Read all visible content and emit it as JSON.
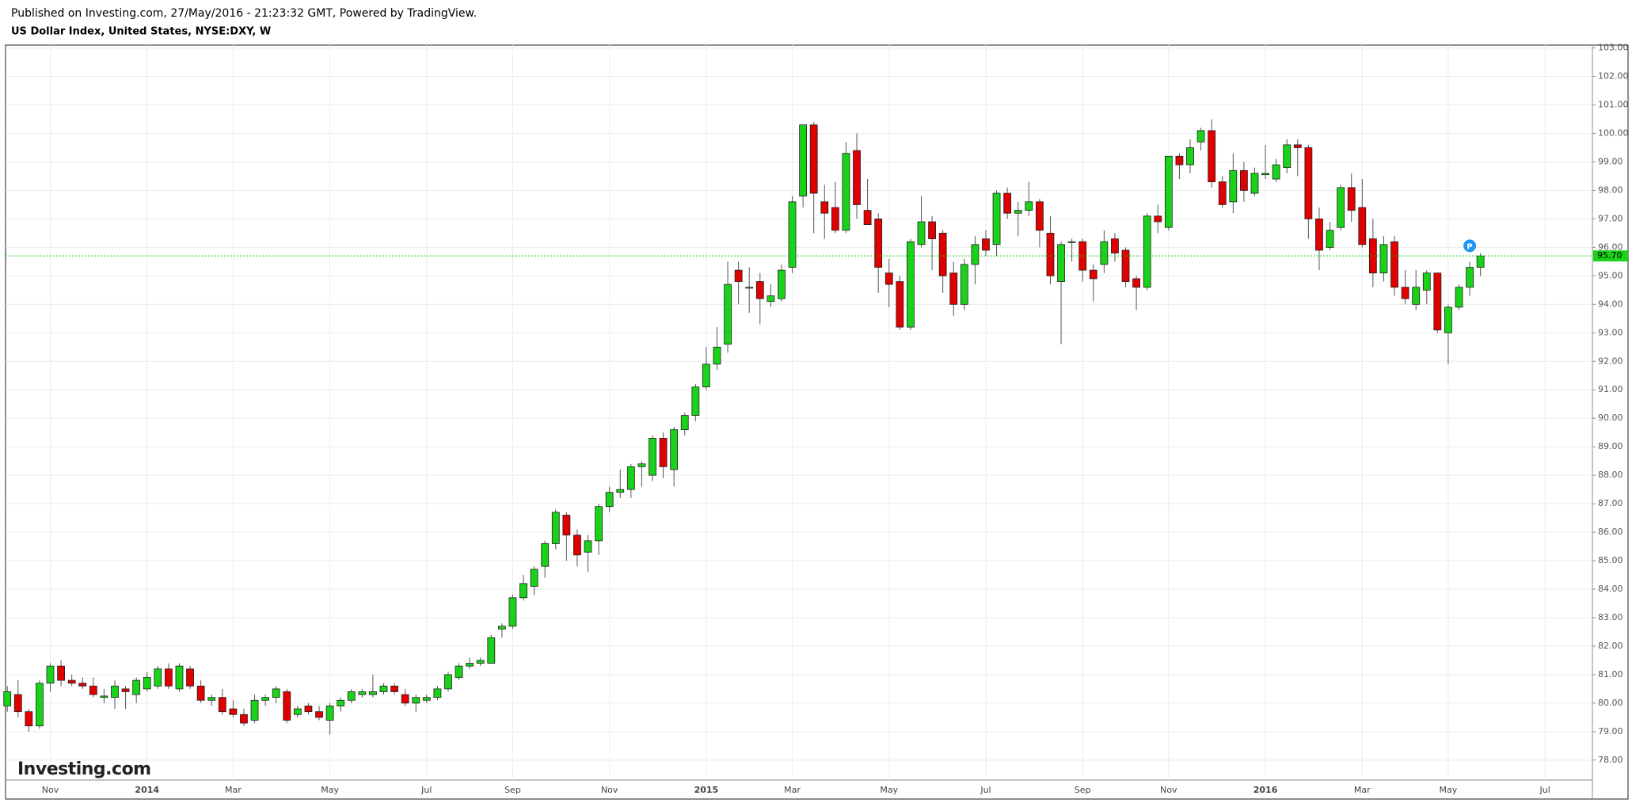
{
  "chart_data": {
    "type": "candlestick",
    "subtitle": "Published on Investing.com, 27/May/2016 - 21:23:32 GMT, Powered by TradingView.",
    "title": "US Dollar Index, United States, NYSE:DXY, W",
    "watermark": "Investing.com",
    "marker_label": "P",
    "up_color": "#19d219",
    "down_color": "#e00000",
    "grid": true,
    "price_line": {
      "value": 95.7,
      "label": "95.70"
    },
    "ylim": [
      77.3,
      103.1
    ],
    "yticks": [
      {
        "value": 78,
        "label": "78.00"
      },
      {
        "value": 79,
        "label": "79.00"
      },
      {
        "value": 80,
        "label": "80.00"
      },
      {
        "value": 81,
        "label": "81.00"
      },
      {
        "value": 82,
        "label": "82.00"
      },
      {
        "value": 83,
        "label": "83.00"
      },
      {
        "value": 84,
        "label": "84.00"
      },
      {
        "value": 85,
        "label": "85.00"
      },
      {
        "value": 86,
        "label": "86.00"
      },
      {
        "value": 87,
        "label": "87.00"
      },
      {
        "value": 88,
        "label": "88.00"
      },
      {
        "value": 89,
        "label": "89.00"
      },
      {
        "value": 90,
        "label": "90.00"
      },
      {
        "value": 91,
        "label": "91.00"
      },
      {
        "value": 92,
        "label": "92.00"
      },
      {
        "value": 93,
        "label": "93.00"
      },
      {
        "value": 94,
        "label": "94.00"
      },
      {
        "value": 95,
        "label": "95.00"
      },
      {
        "value": 96,
        "label": "96.00"
      },
      {
        "value": 97,
        "label": "97.00"
      },
      {
        "value": 98,
        "label": "98.00"
      },
      {
        "value": 99,
        "label": "99.00"
      },
      {
        "value": 100,
        "label": "100.00"
      },
      {
        "value": 101,
        "label": "101.00"
      },
      {
        "value": 102,
        "label": "102.00"
      },
      {
        "value": 103,
        "label": "103.00"
      }
    ],
    "categories": [
      null,
      null,
      null,
      null,
      "Nov",
      null,
      null,
      null,
      null,
      null,
      null,
      null,
      null,
      "2014",
      null,
      null,
      null,
      null,
      null,
      null,
      null,
      "Mar",
      null,
      null,
      null,
      null,
      null,
      null,
      null,
      null,
      "May",
      null,
      null,
      null,
      null,
      null,
      null,
      null,
      null,
      "Jul",
      null,
      null,
      null,
      null,
      null,
      null,
      null,
      "Sep",
      null,
      null,
      null,
      null,
      null,
      null,
      null,
      null,
      "Nov",
      null,
      null,
      null,
      null,
      null,
      null,
      null,
      null,
      "2015",
      null,
      null,
      null,
      null,
      null,
      null,
      null,
      "Mar",
      null,
      null,
      null,
      null,
      null,
      null,
      null,
      null,
      "May",
      null,
      null,
      null,
      null,
      null,
      null,
      null,
      null,
      "Jul",
      null,
      null,
      null,
      null,
      null,
      null,
      null,
      null,
      "Sep",
      null,
      null,
      null,
      null,
      null,
      null,
      null,
      "Nov",
      null,
      null,
      null,
      null,
      null,
      null,
      null,
      null,
      "2016",
      null,
      null,
      null,
      null,
      null,
      null,
      null,
      null,
      "Mar",
      null,
      null,
      null,
      null,
      null,
      null,
      null,
      "May",
      null,
      null,
      null,
      null,
      null,
      null,
      null,
      null,
      "Jul"
    ],
    "open": [
      79.9,
      80.3,
      79.7,
      79.2,
      80.7,
      81.3,
      80.8,
      80.7,
      80.6,
      80.2,
      80.2,
      80.5,
      80.3,
      80.5,
      80.6,
      81.2,
      80.5,
      81.2,
      80.6,
      80.1,
      80.2,
      79.8,
      79.6,
      79.4,
      80.1,
      80.2,
      80.4,
      79.6,
      79.9,
      79.7,
      79.4,
      79.9,
      80.1,
      80.3,
      80.3,
      80.4,
      80.6,
      80.3,
      80.0,
      80.1,
      80.2,
      80.5,
      80.9,
      81.3,
      81.4,
      81.4,
      82.6,
      82.7,
      83.7,
      84.1,
      84.8,
      85.6,
      86.6,
      85.9,
      85.3,
      85.7,
      86.9,
      87.4,
      87.5,
      88.3,
      88.0,
      89.3,
      88.2,
      89.6,
      90.1,
      91.1,
      91.9,
      92.6,
      95.2,
      94.6,
      94.8,
      94.1,
      94.2,
      95.3,
      97.8,
      100.3,
      97.6,
      97.4,
      96.6,
      99.4,
      97.3,
      97.0,
      95.1,
      94.8,
      93.2,
      96.1,
      96.9,
      96.5,
      95.1,
      94.0,
      95.4,
      96.3,
      96.1,
      97.9,
      97.2,
      97.3,
      97.6,
      96.5,
      94.8,
      96.2,
      96.2,
      95.2,
      95.4,
      96.3,
      95.9,
      94.9,
      94.6,
      97.1,
      96.7,
      99.2,
      98.9,
      99.7,
      100.1,
      98.3,
      97.6,
      98.7,
      97.9,
      98.55,
      98.4,
      98.8,
      99.6,
      99.5,
      97.0,
      96.0,
      96.7,
      98.1,
      97.4,
      96.3,
      95.1,
      96.2,
      94.6,
      94.0,
      94.5,
      95.1,
      93.0,
      93.9,
      94.6,
      95.3,
      null,
      null,
      null,
      null,
      null,
      null
    ],
    "high": [
      80.6,
      80.8,
      79.8,
      80.8,
      81.4,
      81.5,
      81.0,
      80.9,
      80.9,
      80.5,
      80.8,
      80.6,
      80.9,
      81.1,
      81.3,
      81.4,
      81.4,
      81.3,
      80.8,
      80.3,
      80.5,
      80.1,
      79.8,
      80.3,
      80.3,
      80.6,
      80.5,
      79.9,
      80.0,
      79.9,
      80.0,
      80.2,
      80.5,
      80.5,
      81.0,
      80.7,
      80.7,
      80.5,
      80.3,
      80.3,
      80.6,
      81.1,
      81.4,
      81.6,
      81.6,
      82.4,
      82.8,
      83.8,
      84.5,
      84.8,
      85.7,
      86.8,
      86.7,
      86.1,
      85.9,
      87.0,
      87.6,
      88.2,
      88.4,
      88.5,
      89.4,
      89.5,
      89.7,
      90.2,
      91.2,
      92.5,
      93.2,
      95.5,
      95.5,
      95.3,
      95.1,
      94.7,
      95.4,
      97.8,
      100.3,
      100.4,
      98.2,
      98.3,
      99.7,
      100.0,
      98.4,
      97.2,
      95.6,
      95.0,
      96.3,
      97.8,
      97.1,
      96.6,
      95.5,
      95.6,
      96.4,
      96.6,
      98.0,
      98.1,
      97.6,
      98.3,
      97.7,
      97.1,
      96.2,
      96.3,
      96.3,
      95.4,
      96.6,
      96.5,
      96.0,
      95.0,
      97.2,
      97.5,
      99.2,
      99.3,
      99.8,
      100.2,
      100.5,
      98.5,
      99.3,
      99.0,
      98.8,
      99.6,
      99.1,
      99.8,
      99.8,
      99.6,
      97.4,
      96.9,
      98.2,
      98.6,
      98.4,
      97.0,
      96.4,
      96.4,
      95.2,
      95.2,
      95.2,
      95.1,
      94.0,
      94.7,
      95.5,
      95.8,
      null,
      null,
      null,
      null,
      null,
      null
    ],
    "low": [
      79.7,
      79.5,
      79.0,
      79.1,
      80.4,
      80.6,
      80.6,
      80.5,
      80.2,
      80.0,
      79.8,
      79.8,
      80.0,
      80.4,
      80.5,
      80.5,
      80.4,
      80.5,
      80.0,
      79.9,
      79.6,
      79.5,
      79.2,
      79.3,
      79.9,
      80.0,
      79.3,
      79.5,
      79.6,
      79.4,
      78.9,
      79.7,
      80.0,
      80.2,
      80.2,
      80.3,
      80.3,
      79.9,
      79.7,
      80.0,
      80.1,
      80.4,
      80.8,
      81.2,
      81.3,
      81.4,
      82.3,
      82.6,
      83.6,
      83.8,
      84.4,
      85.4,
      85.0,
      84.8,
      84.6,
      85.2,
      86.7,
      87.2,
      87.2,
      87.6,
      87.8,
      87.9,
      87.6,
      89.4,
      89.9,
      91.0,
      91.7,
      92.3,
      94.0,
      93.7,
      93.3,
      93.9,
      94.1,
      95.1,
      97.4,
      96.5,
      96.3,
      96.5,
      96.5,
      97.0,
      96.8,
      94.4,
      93.9,
      93.1,
      93.1,
      96.0,
      95.2,
      94.4,
      93.6,
      93.8,
      94.7,
      95.7,
      95.7,
      97.0,
      96.4,
      97.1,
      96.0,
      94.7,
      92.6,
      95.5,
      94.8,
      94.1,
      95.1,
      95.5,
      94.6,
      93.8,
      94.5,
      96.5,
      96.6,
      98.4,
      98.6,
      99.4,
      98.1,
      97.4,
      97.2,
      97.6,
      97.8,
      98.4,
      98.3,
      98.6,
      98.5,
      96.3,
      95.2,
      95.9,
      96.6,
      96.9,
      96.0,
      94.6,
      94.8,
      94.3,
      94.0,
      93.8,
      94.0,
      93.0,
      91.9,
      93.8,
      94.3,
      95.0,
      null,
      null,
      null,
      null,
      null,
      null
    ],
    "close": [
      80.4,
      79.7,
      79.2,
      80.7,
      81.3,
      80.8,
      80.7,
      80.6,
      80.3,
      80.25,
      80.6,
      80.4,
      80.8,
      80.9,
      81.2,
      80.6,
      81.3,
      80.6,
      80.1,
      80.2,
      79.7,
      79.6,
      79.3,
      80.1,
      80.2,
      80.5,
      79.4,
      79.8,
      79.7,
      79.5,
      79.9,
      80.1,
      80.4,
      80.4,
      80.4,
      80.6,
      80.4,
      80.0,
      80.2,
      80.2,
      80.5,
      81.0,
      81.3,
      81.4,
      81.5,
      82.3,
      82.7,
      83.7,
      84.2,
      84.7,
      85.6,
      86.7,
      85.9,
      85.2,
      85.7,
      86.9,
      87.4,
      87.5,
      88.3,
      88.4,
      89.3,
      88.3,
      89.6,
      90.1,
      91.1,
      91.9,
      92.5,
      94.7,
      94.8,
      94.6,
      94.2,
      94.3,
      95.2,
      97.6,
      100.3,
      97.9,
      97.2,
      96.6,
      99.3,
      97.5,
      96.8,
      95.3,
      94.7,
      93.2,
      96.2,
      96.9,
      96.3,
      95.0,
      94.0,
      95.4,
      96.1,
      95.9,
      97.9,
      97.2,
      97.3,
      97.6,
      96.6,
      95.0,
      96.1,
      96.2,
      95.2,
      94.9,
      96.2,
      95.8,
      94.8,
      94.6,
      97.1,
      96.9,
      99.2,
      98.9,
      99.5,
      100.1,
      98.3,
      97.5,
      98.7,
      98.0,
      98.6,
      98.6,
      98.9,
      99.6,
      99.5,
      97.0,
      95.9,
      96.6,
      98.1,
      97.3,
      96.1,
      95.1,
      96.1,
      94.6,
      94.2,
      94.6,
      95.1,
      93.1,
      93.9,
      94.6,
      95.3,
      95.7,
      null,
      null,
      null,
      null,
      null,
      null
    ]
  }
}
